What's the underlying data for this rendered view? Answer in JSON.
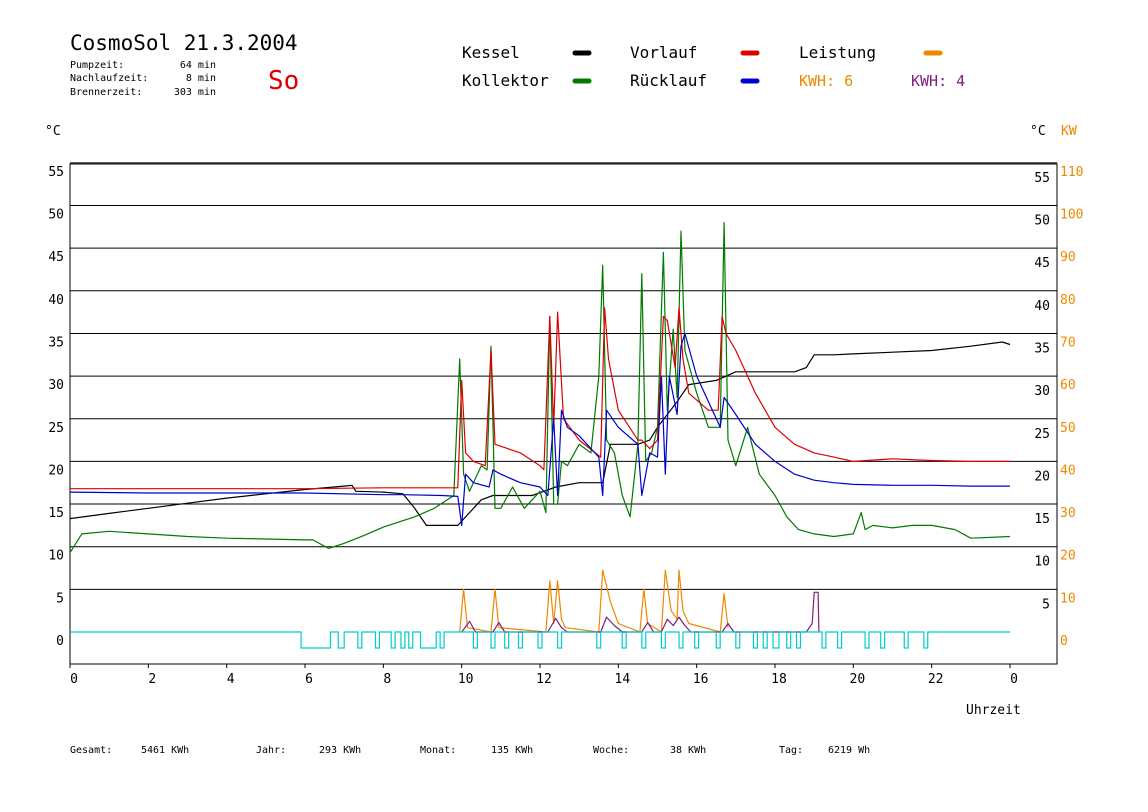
{
  "header": {
    "title": "CosmoSol 21.3.2004",
    "weekday": "So",
    "stats": [
      {
        "label": "Pumpzeit:",
        "value": "64 min"
      },
      {
        "label": "Nachlaufzeit:",
        "value": "8 min"
      },
      {
        "label": "Brennerzeit:",
        "value": "303 min"
      }
    ]
  },
  "legend": [
    {
      "label": "Kessel",
      "color": "#000000",
      "key": "kessel"
    },
    {
      "label": "Kollektor",
      "color": "#007a00",
      "key": "kollektor"
    },
    {
      "label": "Vorlauf",
      "color": "#dd0000",
      "key": "vorlauf"
    },
    {
      "label": "Rücklauf",
      "color": "#0000cc",
      "key": "ruecklauf"
    },
    {
      "label": "Leistung",
      "color": "#ee8800",
      "key": "leistung"
    }
  ],
  "kwh": [
    {
      "text": "KWH: 6",
      "color": "#ee8800"
    },
    {
      "text": "KWH: 4",
      "color": "#802080"
    }
  ],
  "colors": {
    "pump_signal": "#00cccc",
    "purple": "#802080",
    "orange": "#ee8800",
    "grid": "#000000"
  },
  "footer": [
    {
      "label": "Gesamt:",
      "value": "5461 KWh"
    },
    {
      "label": "Jahr:",
      "value": "293 KWh"
    },
    {
      "label": "Monat:",
      "value": "135 KWh"
    },
    {
      "label": "Woche:",
      "value": "38 KWh"
    },
    {
      "label": "Tag:",
      "value": "6219 Wh"
    }
  ],
  "chart_data": {
    "type": "line",
    "xlabel": "Uhrzeit",
    "ylabel_left": "°C",
    "ylabel_right_temp": "°C",
    "ylabel_right_power": "KW",
    "x_ticks": [
      "0",
      "2",
      "4",
      "6",
      "8",
      "10",
      "12",
      "14",
      "16",
      "18",
      "20",
      "22",
      "0"
    ],
    "xlim": [
      0,
      24
    ],
    "ylim": [
      -4,
      55
    ],
    "y_ticks_left": [
      0,
      5,
      10,
      15,
      20,
      25,
      30,
      35,
      40,
      45,
      50,
      55
    ],
    "y_ticks_right_temp": [
      5,
      10,
      15,
      20,
      25,
      30,
      35,
      40,
      45,
      50,
      55
    ],
    "y_ticks_power": [
      0,
      10,
      20,
      30,
      40,
      50,
      60,
      70,
      80,
      90,
      100,
      110
    ],
    "grid": true,
    "series": [
      {
        "name": "Kessel",
        "key": "kessel",
        "color": "#000000",
        "x": [
          0,
          1,
          2,
          3,
          4,
          5,
          6,
          7,
          7.2,
          7.3,
          8,
          8.5,
          8.8,
          9.1,
          9.5,
          9.9,
          10.5,
          10.8,
          11,
          11.8,
          12.1,
          12.4,
          13,
          13.6,
          13.8,
          14.5,
          14.8,
          15,
          15.5,
          15.8,
          16.5,
          17,
          18.5,
          18.8,
          19,
          19.5,
          20,
          21,
          22,
          23,
          23.8,
          24
        ],
        "y": [
          13.3,
          13.9,
          14.5,
          15.1,
          15.7,
          16.2,
          16.7,
          17.1,
          17.2,
          16.5,
          16.4,
          16.2,
          14.5,
          12.5,
          12.5,
          12.5,
          15.5,
          16,
          16,
          16,
          16.5,
          17,
          17.5,
          17.5,
          22,
          22,
          22.5,
          24,
          27,
          29,
          29.5,
          30.5,
          30.5,
          31,
          32.5,
          32.5,
          32.6,
          32.8,
          33,
          33.5,
          34,
          33.7
        ]
      },
      {
        "name": "Kollektor",
        "key": "kollektor",
        "color": "#007a00",
        "x": [
          0,
          0.3,
          1,
          2,
          3,
          4,
          5,
          6,
          6.2,
          6.6,
          7,
          7.5,
          8,
          8.8,
          9.3,
          9.8,
          9.95,
          10.05,
          10.2,
          10.5,
          10.65,
          10.75,
          10.85,
          11,
          11.3,
          11.6,
          12,
          12.15,
          12.25,
          12.35,
          12.45,
          12.55,
          12.7,
          13,
          13.3,
          13.5,
          13.6,
          13.7,
          13.9,
          14.1,
          14.3,
          14.5,
          14.6,
          14.7,
          14.85,
          15,
          15.15,
          15.25,
          15.4,
          15.5,
          15.6,
          15.7,
          16,
          16.3,
          16.6,
          16.7,
          16.8,
          17,
          17.3,
          17.6,
          18,
          18.3,
          18.6,
          19,
          19.5,
          20,
          20.2,
          20.3,
          20.5,
          21,
          21.5,
          22,
          22.6,
          23,
          24
        ],
        "y": [
          9.3,
          11.5,
          11.8,
          11.5,
          11.2,
          11,
          10.9,
          10.8,
          10.8,
          9.8,
          10.4,
          11.3,
          12.3,
          13.5,
          14.5,
          16,
          32,
          18.5,
          16.5,
          19.5,
          19,
          33.5,
          14.5,
          14.5,
          17,
          14.5,
          16.5,
          14,
          37,
          15,
          15,
          20,
          19.5,
          22,
          21,
          30,
          43,
          22.5,
          21,
          16,
          13.5,
          22,
          42,
          20,
          21,
          24,
          44.5,
          26,
          35.5,
          27.5,
          47,
          33,
          28,
          24,
          24,
          48,
          22.5,
          19.5,
          24,
          18.5,
          16,
          13.5,
          12,
          11.5,
          11.2,
          11.5,
          14,
          12,
          12.5,
          12.2,
          12.5,
          12.5,
          12,
          11,
          11.2
        ]
      },
      {
        "name": "Vorlauf",
        "key": "vorlauf",
        "color": "#dd0000",
        "x": [
          0,
          2,
          4,
          6,
          8,
          9.5,
          9.9,
          10,
          10.1,
          10.3,
          10.6,
          10.75,
          10.85,
          11.5,
          12,
          12.1,
          12.25,
          12.35,
          12.45,
          12.6,
          13,
          13.55,
          13.65,
          13.75,
          14,
          14.5,
          14.6,
          14.8,
          15,
          15.15,
          15.25,
          15.45,
          15.55,
          15.65,
          15.8,
          16.3,
          16.55,
          16.65,
          16.75,
          17,
          17.5,
          18,
          18.5,
          19,
          19.5,
          20,
          21,
          22,
          23,
          24
        ],
        "y": [
          16.8,
          16.8,
          16.8,
          16.8,
          16.9,
          16.9,
          16.9,
          29.5,
          21,
          20,
          19.5,
          33,
          22,
          21,
          19.5,
          19,
          37,
          24,
          37.5,
          25,
          22.5,
          20.5,
          38,
          32,
          26,
          22.5,
          22.5,
          21.5,
          22.5,
          37,
          36.5,
          31,
          38,
          32,
          28,
          26,
          26,
          37,
          35,
          33,
          28,
          24,
          22,
          21,
          20.5,
          20,
          20.3,
          20.1,
          20,
          20
        ]
      },
      {
        "name": "Rücklauf",
        "key": "ruecklauf",
        "color": "#0000cc",
        "x": [
          0,
          2,
          4,
          6,
          8,
          8.5,
          9.5,
          9.9,
          10,
          10.1,
          10.3,
          10.7,
          10.8,
          11,
          11.5,
          12,
          12.2,
          12.35,
          12.45,
          12.55,
          12.7,
          13,
          13.5,
          13.6,
          13.7,
          14,
          14.5,
          14.6,
          14.8,
          15,
          15.1,
          15.2,
          15.3,
          15.5,
          15.6,
          15.7,
          16,
          16.5,
          16.6,
          16.7,
          17,
          17.5,
          18,
          18.5,
          19,
          19.5,
          20,
          21,
          22,
          23,
          24
        ],
        "y": [
          16.4,
          16.3,
          16.3,
          16.3,
          16.1,
          16.1,
          16,
          15.9,
          12.5,
          18.5,
          17.5,
          17,
          19,
          18.5,
          17.5,
          17,
          16,
          25,
          16,
          26,
          24,
          23,
          20.5,
          16,
          26,
          24,
          22,
          16,
          21,
          20.5,
          30,
          18.5,
          30,
          25.5,
          33.5,
          35,
          30,
          25,
          24,
          27.5,
          25.5,
          22,
          20,
          18.5,
          17.8,
          17.5,
          17.3,
          17.2,
          17.2,
          17.1,
          17.1
        ]
      },
      {
        "name": "Leistung",
        "key": "leistung",
        "color": "#ee8800",
        "axis": "power",
        "x": [
          9.95,
          10.05,
          10.15,
          10.75,
          10.85,
          10.95,
          12.15,
          12.25,
          12.35,
          12.45,
          12.55,
          12.65,
          13.5,
          13.6,
          13.8,
          14.0,
          14.55,
          14.65,
          14.75,
          15.1,
          15.2,
          15.35,
          15.5,
          15.55,
          15.65,
          15.8,
          16.6,
          16.7,
          16.8
        ],
        "y": [
          0,
          10,
          1,
          0,
          10,
          1,
          0,
          12,
          2,
          12,
          3,
          1,
          0,
          14.5,
          7,
          2,
          0,
          10,
          2,
          0,
          14.5,
          5,
          3,
          14.5,
          5,
          2,
          0,
          9,
          1
        ]
      },
      {
        "name": "Purple",
        "key": "purple",
        "color": "#802080",
        "axis": "power",
        "x": [
          10,
          10.2,
          10.35,
          10.8,
          10.95,
          11.1,
          12.2,
          12.4,
          12.55,
          12.7,
          13.55,
          13.7,
          13.9,
          14.1,
          14.6,
          14.75,
          14.9,
          15.1,
          15.25,
          15.4,
          15.55,
          15.7,
          15.85,
          16.65,
          16.8,
          16.95,
          18.8,
          18.95,
          19,
          19.1,
          19.12
        ],
        "y": [
          0,
          2.5,
          0,
          0,
          2.2,
          0,
          0,
          3.2,
          1,
          0,
          0,
          3.5,
          1.5,
          0,
          0,
          2.2,
          0,
          0,
          3,
          1.5,
          3.5,
          1.5,
          0,
          0,
          2,
          0,
          0,
          2,
          9.3,
          9.3,
          0
        ]
      },
      {
        "name": "Pumpe",
        "key": "pumpe",
        "color": "#00cccc",
        "type": "pulses",
        "pulses": [
          [
            5.9,
            6.65
          ],
          [
            6.85,
            7.0
          ],
          [
            7.35,
            7.45
          ],
          [
            7.8,
            7.9
          ],
          [
            8.2,
            8.3
          ],
          [
            8.45,
            8.55
          ],
          [
            8.65,
            8.75
          ],
          [
            8.95,
            9.35
          ],
          [
            9.45,
            9.55
          ],
          [
            10.3,
            10.4
          ],
          [
            10.75,
            10.85
          ],
          [
            11.1,
            11.2
          ],
          [
            11.45,
            11.55
          ],
          [
            11.95,
            12.05
          ],
          [
            12.45,
            12.55
          ],
          [
            13.45,
            13.55
          ],
          [
            14.1,
            14.2
          ],
          [
            14.6,
            14.7
          ],
          [
            15.1,
            15.2
          ],
          [
            15.55,
            15.65
          ],
          [
            15.95,
            16.05
          ],
          [
            16.5,
            16.6
          ],
          [
            17.0,
            17.1
          ],
          [
            17.45,
            17.55
          ],
          [
            17.7,
            17.8
          ],
          [
            17.95,
            18.1
          ],
          [
            18.3,
            18.4
          ],
          [
            18.55,
            18.65
          ],
          [
            19.2,
            19.3
          ],
          [
            19.6,
            19.7
          ],
          [
            20.3,
            20.4
          ],
          [
            20.7,
            20.8
          ],
          [
            21.3,
            21.4
          ],
          [
            21.8,
            21.9
          ]
        ]
      }
    ]
  }
}
